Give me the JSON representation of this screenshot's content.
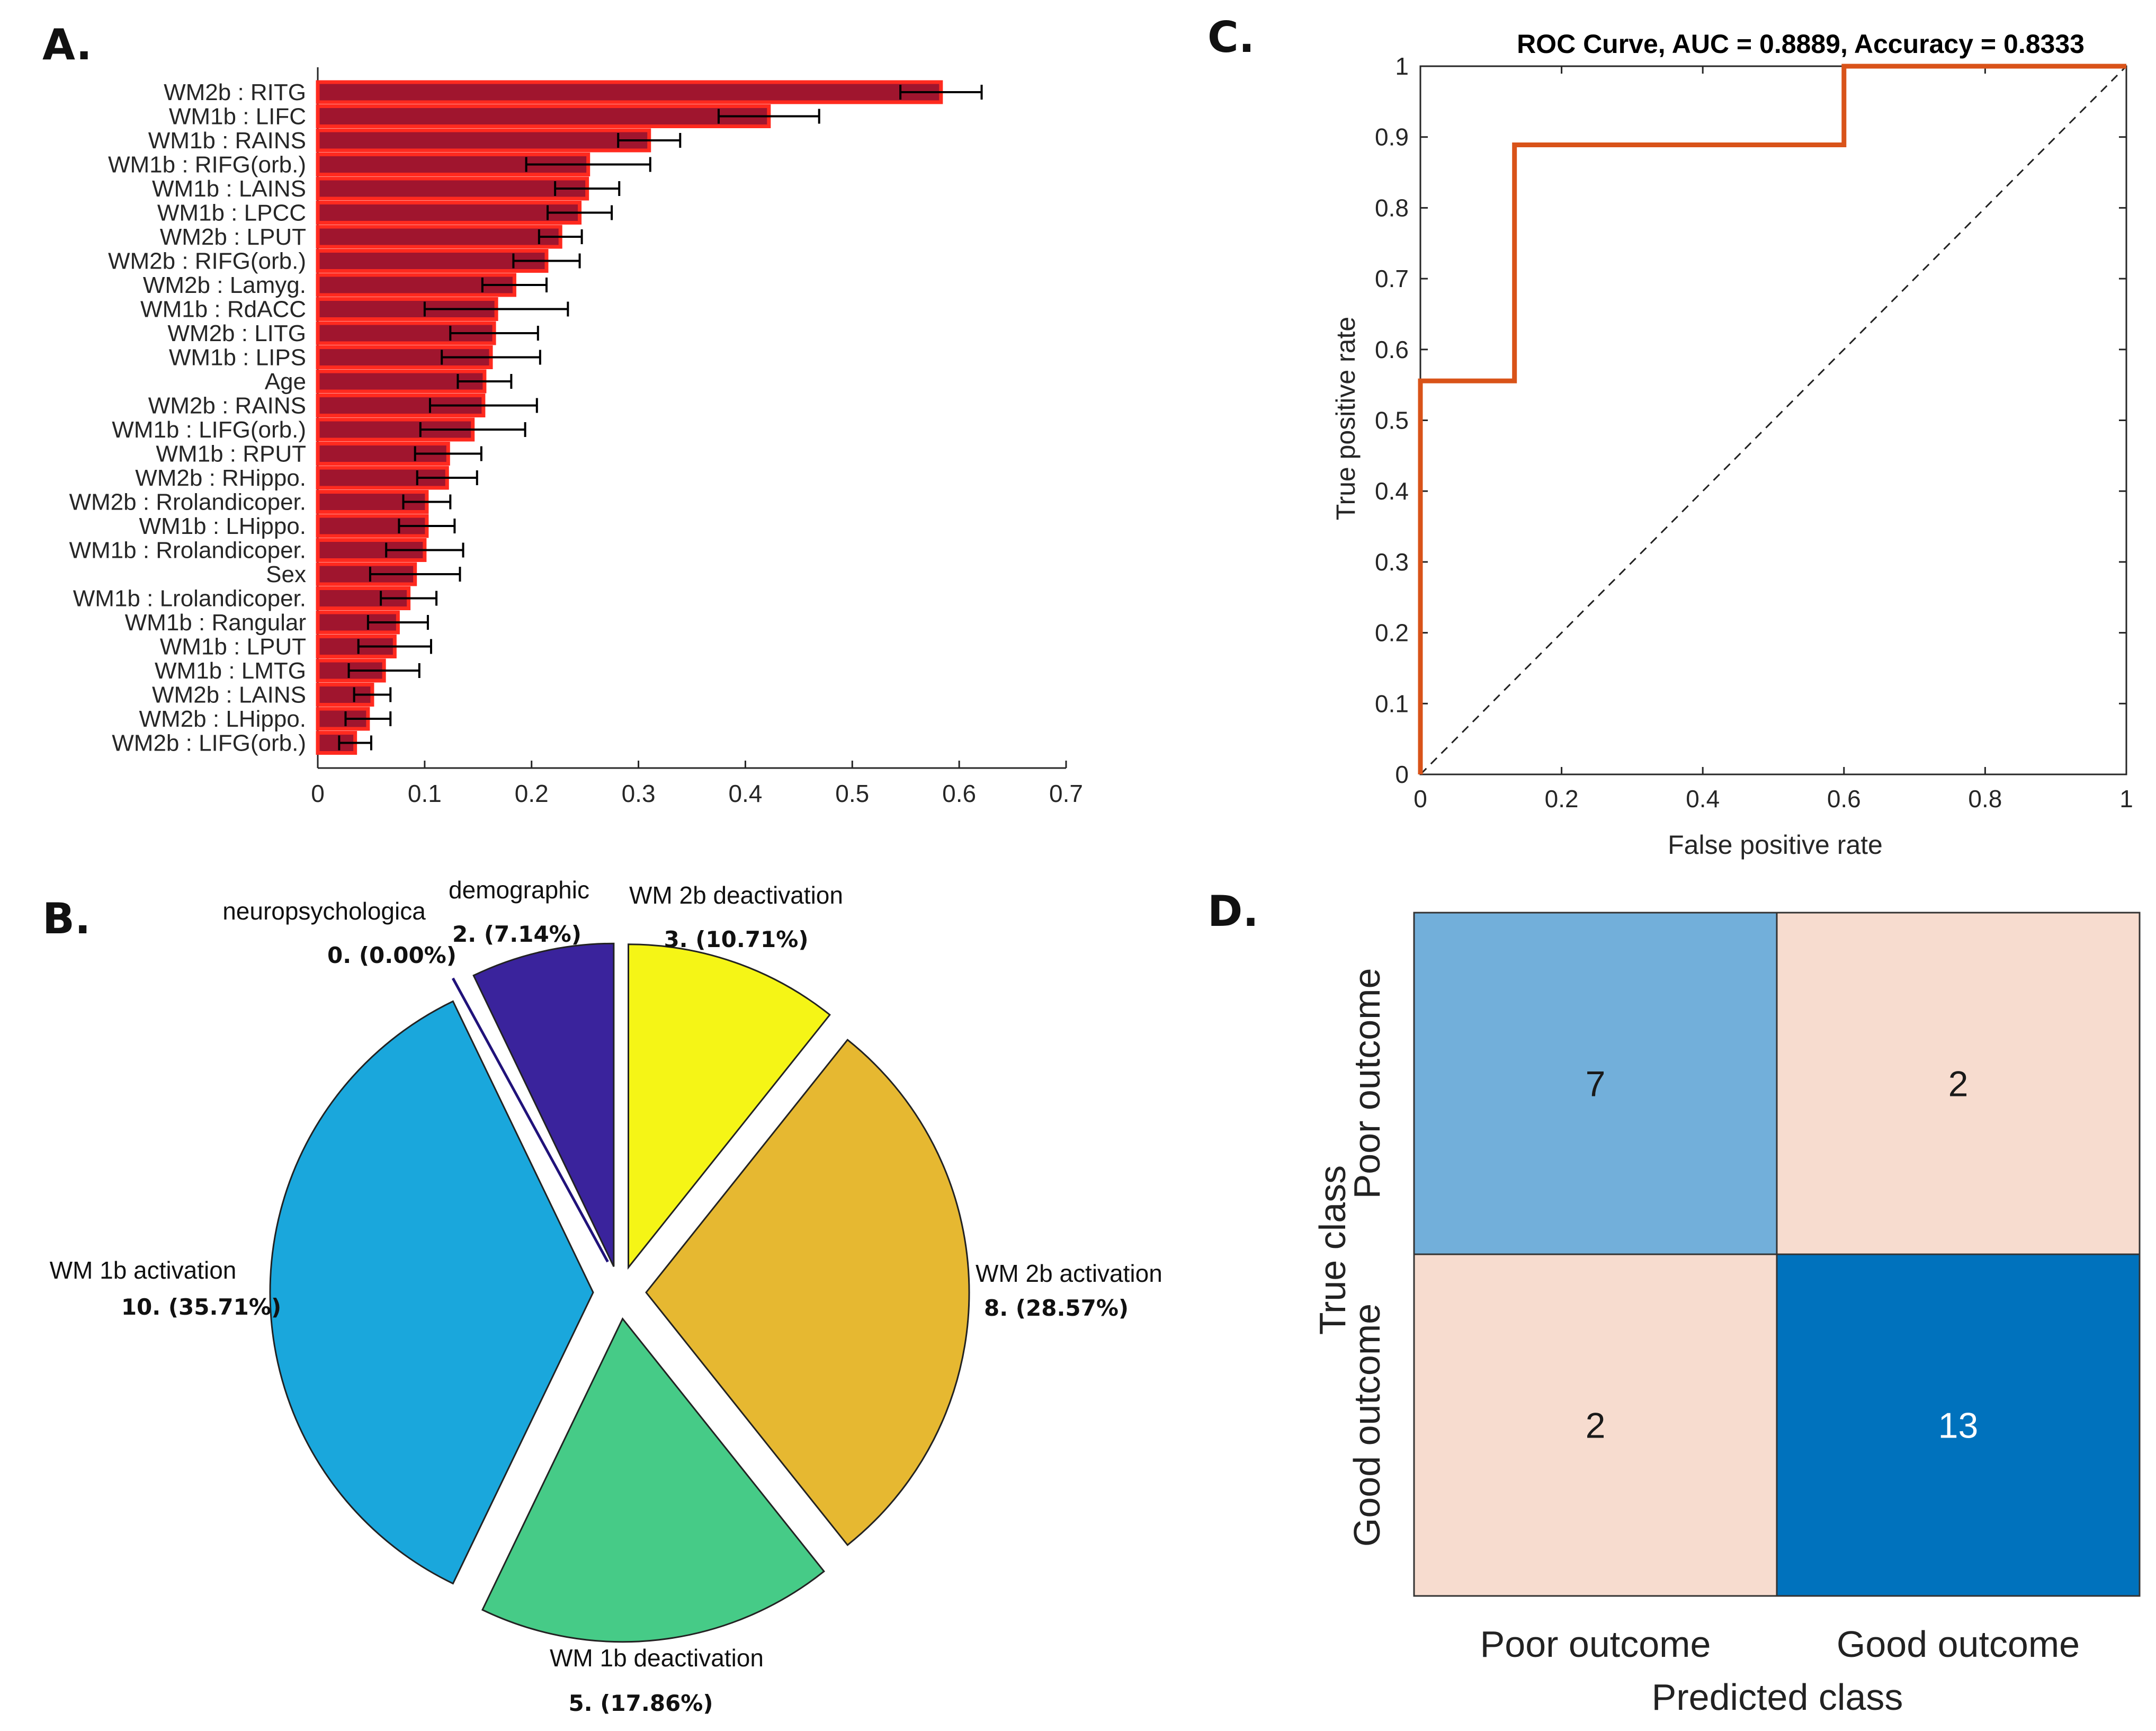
{
  "panels": {
    "a": "A.",
    "b": "B.",
    "c": "C.",
    "d": "D."
  },
  "chart_data": [
    {
      "panel": "A",
      "type": "bar",
      "orientation": "horizontal",
      "categories": [
        "WM2b : RITG",
        "WM1b : LIFC",
        "WM1b : RAINS",
        "WM1b : RIFG(orb.)",
        "WM1b : LAINS",
        "WM1b : LPCC",
        "WM2b : LPUT",
        "WM2b : RIFG(orb.)",
        "WM2b : Lamyg.",
        "WM1b : RdACC",
        "WM2b : LITG",
        "WM1b : LIPS",
        "Age",
        "WM2b : RAINS",
        "WM1b : LIFG(orb.)",
        "WM1b : RPUT",
        "WM2b : RHippo.",
        "WM2b : Rrolandicoper.",
        "WM1b : LHippo.",
        "WM1b : Rrolandicoper.",
        "Sex",
        "WM1b : Lrolandicoper.",
        "WM1b : Rangular",
        "WM1b : LPUT",
        "WM1b : LMTG",
        "WM2b : LAINS",
        "WM2b : LHippo.",
        "WM2b : LIFG(orb.)"
      ],
      "values": [
        0.583,
        0.422,
        0.31,
        0.253,
        0.252,
        0.245,
        0.227,
        0.214,
        0.184,
        0.167,
        0.165,
        0.162,
        0.156,
        0.155,
        0.145,
        0.122,
        0.121,
        0.102,
        0.102,
        0.1,
        0.091,
        0.085,
        0.075,
        0.072,
        0.062,
        0.051,
        0.047,
        0.035
      ],
      "error": [
        0.038,
        0.047,
        0.029,
        0.058,
        0.03,
        0.03,
        0.02,
        0.031,
        0.03,
        0.067,
        0.041,
        0.046,
        0.025,
        0.05,
        0.049,
        0.031,
        0.028,
        0.022,
        0.026,
        0.036,
        0.042,
        0.026,
        0.028,
        0.034,
        0.033,
        0.017,
        0.021,
        0.015
      ],
      "xlim": [
        0,
        0.7
      ],
      "xticks": [
        "0",
        "0.1",
        "0.2",
        "0.3",
        "0.4",
        "0.5",
        "0.6",
        "0.7"
      ],
      "bar_color": "#a0152e",
      "edge_color": "#ff2a1f"
    },
    {
      "panel": "B",
      "type": "pie",
      "labels": [
        "neuropsychologica",
        "demographic",
        "WM 2b deactivation",
        "WM 2b activation",
        "WM 1b deactivation",
        "WM 1b activation"
      ],
      "value_labels": [
        "0. (0.00%)",
        "2. (7.14%)",
        "3. (10.71%)",
        "8. (28.57%)",
        "5. (17.86%)",
        "10. (35.71%)"
      ],
      "values": [
        0,
        2,
        3,
        8,
        5,
        10
      ],
      "colors": [
        "#20127a",
        "#3a239c",
        "#f5f516",
        "#e6b831",
        "#46cb87",
        "#1aa7dc"
      ]
    },
    {
      "panel": "C",
      "type": "line",
      "title": "ROC Curve, AUC = 0.8889, Accuracy = 0.8333",
      "xlabel": "False positive rate",
      "ylabel": "True positive rate",
      "x": [
        0,
        0,
        0.1333,
        0.1333,
        0.6,
        0.6,
        1
      ],
      "y": [
        0,
        0.5556,
        0.5556,
        0.8889,
        0.8889,
        1,
        1
      ],
      "xlim": [
        0,
        1
      ],
      "ylim": [
        0,
        1
      ],
      "xticks": [
        "0",
        "0.2",
        "0.4",
        "0.6",
        "0.8",
        "1"
      ],
      "yticks": [
        "0",
        "0.1",
        "0.2",
        "0.3",
        "0.4",
        "0.5",
        "0.6",
        "0.7",
        "0.8",
        "0.9",
        "1"
      ],
      "line_color": "#d95319",
      "diagonal": "dashed"
    },
    {
      "panel": "D",
      "type": "heatmap",
      "xlabel": "Predicted class",
      "ylabel": "True class",
      "classes": [
        "Poor outcome",
        "Good outcome"
      ],
      "matrix": [
        [
          7,
          2
        ],
        [
          2,
          13
        ]
      ],
      "matrix_text": [
        [
          "7",
          "2"
        ],
        [
          "2",
          "13"
        ]
      ],
      "cell_colors": [
        [
          "#72afda",
          "#f7dccf"
        ],
        [
          "#f7dccf",
          "#0072bd"
        ]
      ],
      "text_colors": [
        [
          "#1a1a1a",
          "#1a1a1a"
        ],
        [
          "#1a1a1a",
          "#ffffff"
        ]
      ]
    }
  ]
}
